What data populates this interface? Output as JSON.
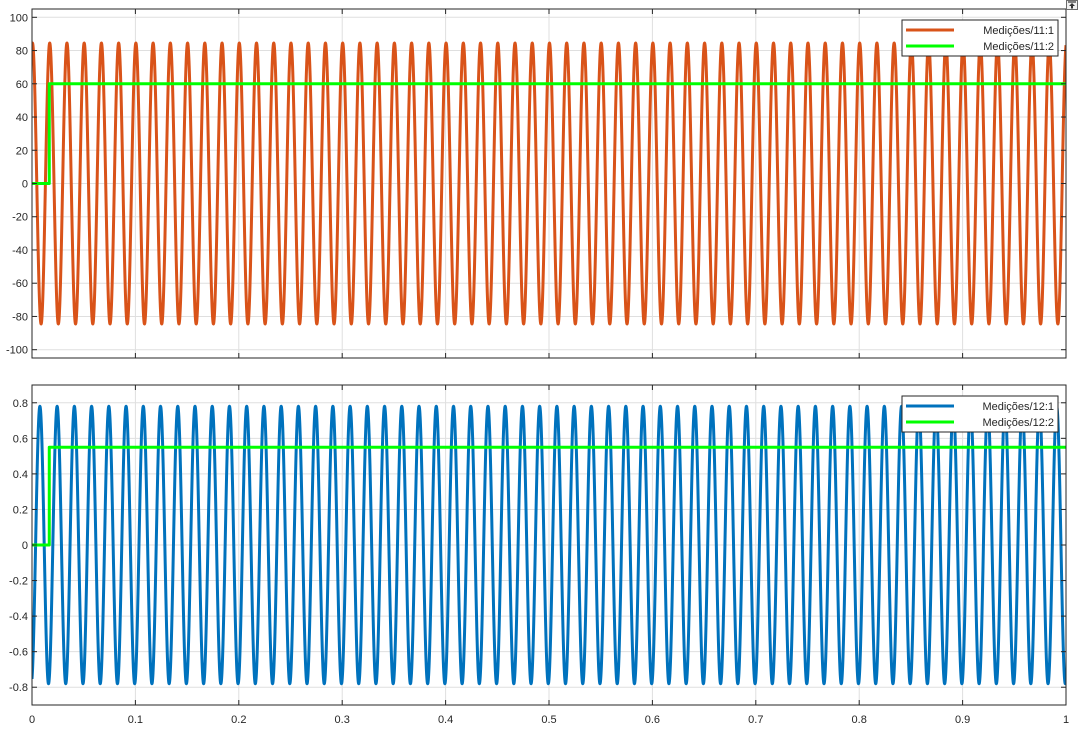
{
  "colors": {
    "orange": "#D95319",
    "blue": "#0072BD",
    "green": "#00FF00",
    "grid": "#DFDFDF",
    "axis": "#262626"
  },
  "toolbar": {
    "restore_icon": "restore-axes-icon"
  },
  "chart_data": [
    {
      "type": "line",
      "title": "",
      "xlabel": "",
      "ylabel": "",
      "xlim": [
        0,
        1
      ],
      "ylim": [
        -105,
        105
      ],
      "grid": true,
      "legend_position": "top-right",
      "x_ticks": [
        0,
        0.1,
        0.2,
        0.3,
        0.4,
        0.5,
        0.6,
        0.7,
        0.8,
        0.9,
        1
      ],
      "x_tick_labels": [
        "",
        "",
        "",
        "",
        "",
        "",
        "",
        "",
        "",
        "",
        ""
      ],
      "y_ticks": [
        -100,
        -80,
        -60,
        -40,
        -20,
        0,
        20,
        40,
        60,
        80,
        100
      ],
      "y_tick_labels": [
        "-100",
        "-80",
        "-60",
        "-40",
        "-20",
        "0",
        "20",
        "40",
        "60",
        "80",
        "100"
      ],
      "series": [
        {
          "name": "Medições/11:1",
          "kind": "sine",
          "color": "#D95319",
          "amplitude": 84.5,
          "frequency_hz": 60,
          "phase_deg": 80,
          "t_start": 0,
          "t_end": 1
        },
        {
          "name": "Medições/11:2",
          "kind": "step",
          "color": "#00FF00",
          "points": [
            [
              0,
              0
            ],
            [
              0.0167,
              0
            ],
            [
              0.0167,
              60
            ],
            [
              1,
              60
            ]
          ]
        }
      ]
    },
    {
      "type": "line",
      "title": "",
      "xlabel": "",
      "ylabel": "",
      "xlim": [
        0,
        1
      ],
      "ylim": [
        -0.9,
        0.9
      ],
      "grid": true,
      "legend_position": "top-right",
      "x_ticks": [
        0,
        0.1,
        0.2,
        0.3,
        0.4,
        0.5,
        0.6,
        0.7,
        0.8,
        0.9,
        1
      ],
      "x_tick_labels": [
        "0",
        "0.1",
        "0.2",
        "0.3",
        "0.4",
        "0.5",
        "0.6",
        "0.7",
        "0.8",
        "0.9",
        "1"
      ],
      "y_ticks": [
        -0.8,
        -0.6,
        -0.4,
        -0.2,
        0,
        0.2,
        0.4,
        0.6,
        0.8
      ],
      "y_tick_labels": [
        "-0.8",
        "-0.6",
        "-0.4",
        "-0.2",
        "0",
        "0.2",
        "0.4",
        "0.6",
        "0.8"
      ],
      "series": [
        {
          "name": "Medições/12:1",
          "kind": "sine",
          "color": "#0072BD",
          "amplitude": 0.78,
          "frequency_hz": 60,
          "phase_deg": -75,
          "t_start": 0,
          "t_end": 1
        },
        {
          "name": "Medições/12:2",
          "kind": "step",
          "color": "#00FF00",
          "points": [
            [
              0,
              0
            ],
            [
              0.0167,
              0
            ],
            [
              0.0167,
              0.55
            ],
            [
              1,
              0.55
            ]
          ]
        }
      ]
    }
  ]
}
